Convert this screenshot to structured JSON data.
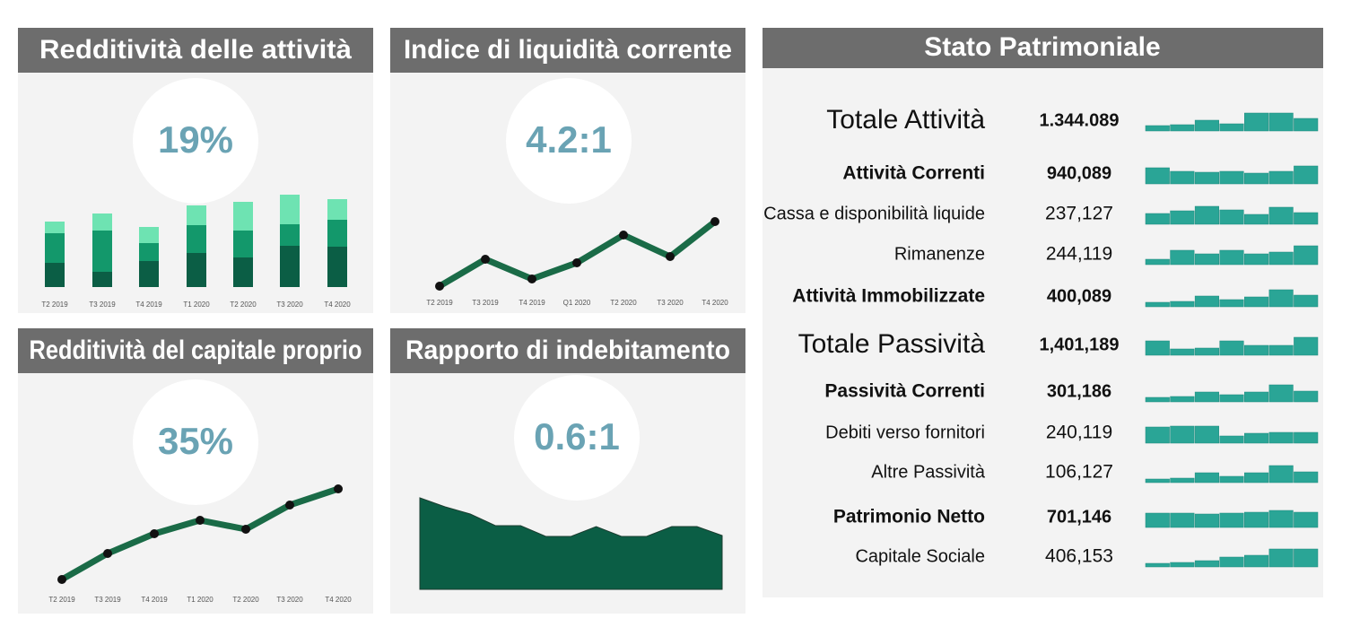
{
  "chart_data": [
    {
      "type": "stacked_bar",
      "title": "Redditività delle attività",
      "kpi": "19%",
      "categories": [
        "T2 2019",
        "T3 2019",
        "T4 2019",
        "T1 2020",
        "T2 2020",
        "T3 2020",
        "T4 2020"
      ],
      "series": [
        {
          "color": "#0b5e45",
          "values": [
            27,
            17,
            29,
            38,
            33,
            46,
            45
          ]
        },
        {
          "color": "#13986b",
          "values": [
            33,
            46,
            20,
            31,
            30,
            24,
            30
          ]
        },
        {
          "color": "#6ee3b2",
          "values": [
            13,
            19,
            18,
            22,
            32,
            33,
            23
          ]
        }
      ]
    },
    {
      "type": "line",
      "title": "Indice di liquidità corrente",
      "kpi": "4.2:1",
      "categories": [
        "T2 2019",
        "T3 2019",
        "T4 2019",
        "Q1 2020",
        "T2 2020",
        "T3 2020",
        "T4 2020"
      ],
      "color": "#1a6b47",
      "values": [
        21,
        51,
        29,
        47,
        78,
        54,
        93
      ]
    },
    {
      "type": "line",
      "title": "Redditività del capitale proprio",
      "kpi": "35%",
      "categories": [
        "T2 2019",
        "T3 2019",
        "T4 2019",
        "T1 2020",
        "T2 2020",
        "T3 2020",
        "T4 2020"
      ],
      "color": "#1a6b47",
      "values": [
        24,
        53,
        75,
        90,
        80,
        107,
        125
      ]
    },
    {
      "type": "area",
      "title": "Rapporto di indebitamento",
      "kpi": "0.6:1",
      "color": "#0b5e45",
      "values": [
        102,
        92,
        84,
        71,
        71,
        59,
        59,
        70,
        59,
        59,
        70,
        70,
        60
      ]
    }
  ],
  "balance_sheet": {
    "title": "Stato Patrimoniale",
    "color": "#2aa596",
    "rows": [
      {
        "label": "Totale Attività",
        "value": "1.344.089",
        "style": "large",
        "trend": [
          6,
          7,
          12,
          8,
          20,
          20,
          14
        ]
      },
      {
        "label": "Attività Correnti",
        "value": "940,089",
        "style": "bold",
        "trend": [
          18,
          14,
          13,
          14,
          12,
          14,
          20
        ]
      },
      {
        "label": "Cassa e disponibilità liquide",
        "value": "237,127",
        "style": "normal",
        "trend": [
          12,
          15,
          20,
          16,
          11,
          19,
          13
        ]
      },
      {
        "label": "Rimanenze",
        "value": "244,119",
        "style": "normal",
        "trend": [
          6,
          16,
          12,
          16,
          12,
          14,
          21
        ]
      },
      {
        "label": "Attività Immobilizzate",
        "value": "400,089",
        "style": "bold",
        "trend": [
          5,
          6,
          12,
          8,
          11,
          19,
          13
        ]
      },
      {
        "label": "Totale Passività",
        "value": "1,401,189",
        "style": "large",
        "trend": [
          16,
          7,
          8,
          16,
          11,
          11,
          20
        ]
      },
      {
        "label": "Passività Correnti",
        "value": "301,186",
        "style": "bold",
        "trend": [
          5,
          6,
          11,
          8,
          11,
          19,
          12
        ]
      },
      {
        "label": "Debiti verso fornitori",
        "value": "240,119",
        "style": "normal",
        "trend": [
          18,
          19,
          19,
          8,
          11,
          12,
          12
        ]
      },
      {
        "label": "Altre Passività",
        "value": "106,127",
        "style": "normal",
        "trend": [
          4,
          5,
          11,
          7,
          11,
          19,
          12
        ]
      },
      {
        "label": "Patrimonio Netto",
        "value": "701,146",
        "style": "bold",
        "trend": [
          16,
          16,
          15,
          16,
          17,
          19,
          17
        ]
      },
      {
        "label": "Capitale Sociale",
        "value": "406,153",
        "style": "normal",
        "trend": [
          4,
          5,
          7,
          11,
          13,
          20,
          20
        ]
      }
    ]
  }
}
